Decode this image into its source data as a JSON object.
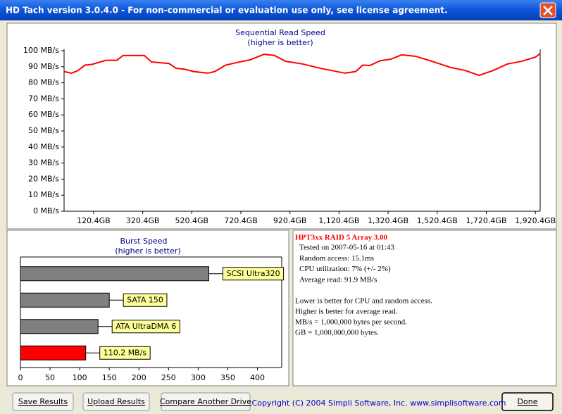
{
  "window": {
    "title": "HD Tach version 3.0.4.0  - For non-commercial or evaluation use only, see license agreement."
  },
  "chart_data": [
    {
      "type": "line",
      "title": "Sequential Read Speed",
      "subtitle": "(higher is better)",
      "x": [
        0,
        30,
        55,
        85,
        115,
        170,
        215,
        240,
        327,
        356,
        428,
        457,
        491,
        528,
        586,
        614,
        658,
        715,
        758,
        815,
        858,
        902,
        973,
        1045,
        1102,
        1145,
        1188,
        1217,
        1246,
        1289,
        1332,
        1375,
        1433,
        1490,
        1533,
        1576,
        1634,
        1691,
        1749,
        1806,
        1864,
        1921,
        1940
      ],
      "series": [
        {
          "name": "Read",
          "color": "#ff0000",
          "values": [
            87,
            86,
            87.5,
            91,
            91.5,
            94,
            94,
            97,
            97,
            93,
            92,
            89,
            88.5,
            87,
            86,
            87,
            91,
            93,
            94.3,
            97.8,
            97,
            93.4,
            91.7,
            89,
            87.3,
            86,
            87,
            91,
            90.8,
            93.8,
            94.7,
            97.4,
            96.5,
            93.8,
            91.7,
            89.5,
            87.7,
            84.6,
            87.7,
            91.7,
            93.4,
            96,
            98.2
          ]
        }
      ],
      "xlim": [
        0,
        1940
      ],
      "ylim": [
        0,
        100
      ],
      "xticks": [
        {
          "value": 120.4,
          "label": "120.4GB"
        },
        {
          "value": 320.4,
          "label": "320.4GB"
        },
        {
          "value": 520.4,
          "label": "520.4GB"
        },
        {
          "value": 720.4,
          "label": "720.4GB"
        },
        {
          "value": 920.4,
          "label": "920.4GB"
        },
        {
          "value": 1120.4,
          "label": "1,120.4GB"
        },
        {
          "value": 1320.4,
          "label": "1,320.4GB"
        },
        {
          "value": 1520.4,
          "label": "1,520.4GB"
        },
        {
          "value": 1720.4,
          "label": "1,720.4GB"
        },
        {
          "value": 1920.4,
          "label": "1,920.4GB"
        }
      ],
      "yticks": [
        {
          "value": 0,
          "label": "0 MB/s"
        },
        {
          "value": 10,
          "label": "10 MB/s"
        },
        {
          "value": 20,
          "label": "20 MB/s"
        },
        {
          "value": 30,
          "label": "30 MB/s"
        },
        {
          "value": 40,
          "label": "40 MB/s"
        },
        {
          "value": 50,
          "label": "50 MB/s"
        },
        {
          "value": 60,
          "label": "60 MB/s"
        },
        {
          "value": 70,
          "label": "70 MB/s"
        },
        {
          "value": 80,
          "label": "80 MB/s"
        },
        {
          "value": 90,
          "label": "90 MB/s"
        },
        {
          "value": 100,
          "label": "100 MB/s"
        }
      ],
      "grid": false
    },
    {
      "type": "barh",
      "title": "Burst Speed",
      "subtitle": "(higher is better)",
      "categories": [
        "SCSI Ultra320",
        "SATA 150",
        "ATA UltraDMA 6",
        null
      ],
      "values": [
        318,
        150,
        131,
        110.2
      ],
      "value_labels": [
        null,
        null,
        null,
        "110.2 MB/s"
      ],
      "colors": [
        "#808080",
        "#808080",
        "#808080",
        "#ff0000"
      ],
      "xlim": [
        0,
        441
      ],
      "xticks": [
        0,
        50,
        100,
        150,
        200,
        250,
        300,
        350,
        400
      ],
      "grid": false
    }
  ],
  "info": {
    "title": "HPT3xx RAID 5 Array 3.00",
    "lines": [
      "Tested on 2007-05-16 at 01:43",
      "Random access: 15.1ms",
      "CPU utilization: 7% (+/- 2%)",
      "Average read: 91.9 MB/s"
    ],
    "notes": [
      "Lower is better for CPU and random access.",
      "Higher is better for average read.",
      "MB/s = 1,000,000 bytes per second.",
      "GB = 1,000,000,000 bytes."
    ]
  },
  "buttons": [
    "Save Results",
    "Upload Results",
    "Compare Another Drive",
    "Done"
  ],
  "footer": "Copyright (C) 2004 Simpli Software, Inc. www.simplisoftware.com"
}
